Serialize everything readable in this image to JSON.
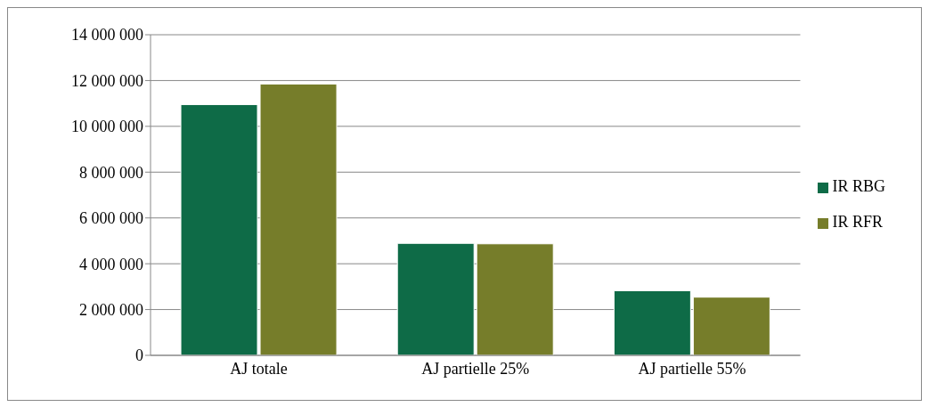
{
  "chart_data": {
    "type": "bar",
    "categories": [
      "AJ totale",
      "AJ partielle 25%",
      "AJ partielle 55%"
    ],
    "series": [
      {
        "name": "IR RBG",
        "color": "#0e6b47",
        "values": [
          10950000,
          4890000,
          2820000
        ]
      },
      {
        "name": "IR RFR",
        "color": "#767d2a",
        "values": [
          11850000,
          4870000,
          2540000
        ]
      }
    ],
    "ylim": [
      0,
      14000000
    ],
    "yticks": [
      {
        "value": 0,
        "label": "0"
      },
      {
        "value": 2000000,
        "label": "2 000 000"
      },
      {
        "value": 4000000,
        "label": "4 000 000"
      },
      {
        "value": 6000000,
        "label": "6 000 000"
      },
      {
        "value": 8000000,
        "label": "8 000 000"
      },
      {
        "value": 10000000,
        "label": "10 000 000"
      },
      {
        "value": 12000000,
        "label": "12 000 000"
      },
      {
        "value": 14000000,
        "label": "14 000 000"
      }
    ],
    "grid": "y",
    "legend": "right"
  }
}
